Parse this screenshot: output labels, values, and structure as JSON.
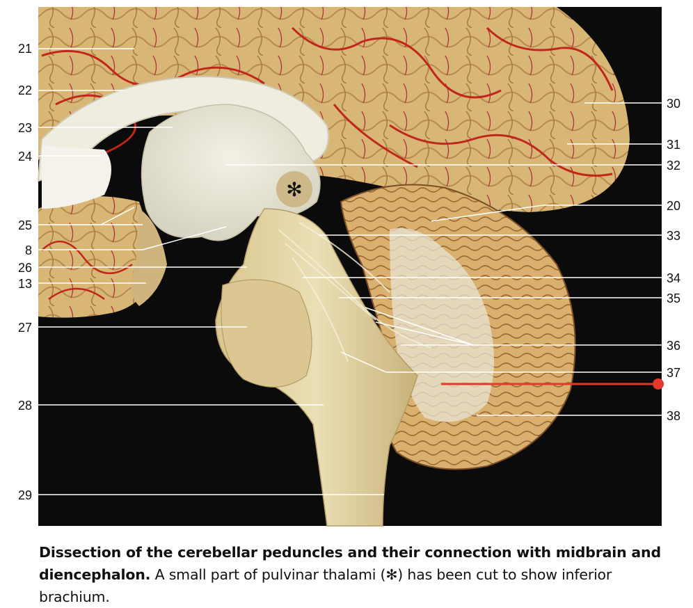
{
  "figure": {
    "left_labels": [
      "21",
      "22",
      "23",
      "24",
      "25",
      "8",
      "26",
      "13",
      "27",
      "28",
      "29"
    ],
    "right_labels": [
      "30",
      "31",
      "32",
      "20",
      "33",
      "34",
      "35",
      "36",
      "37",
      "38"
    ],
    "asterisk": "✻",
    "colors": {
      "background": "#0b0b0b",
      "cortex": "#d9b878",
      "white_matter": "#ece9dc",
      "vessel": "#c8281c",
      "highlight_line": "#e3392b"
    }
  },
  "caption": {
    "bold": "Dissection of the cerebellar peduncles and their connection with midbrain and diencephalon.",
    "text": " A small part of pulvinar thalami (✻) has been cut to show inferior brachium."
  }
}
